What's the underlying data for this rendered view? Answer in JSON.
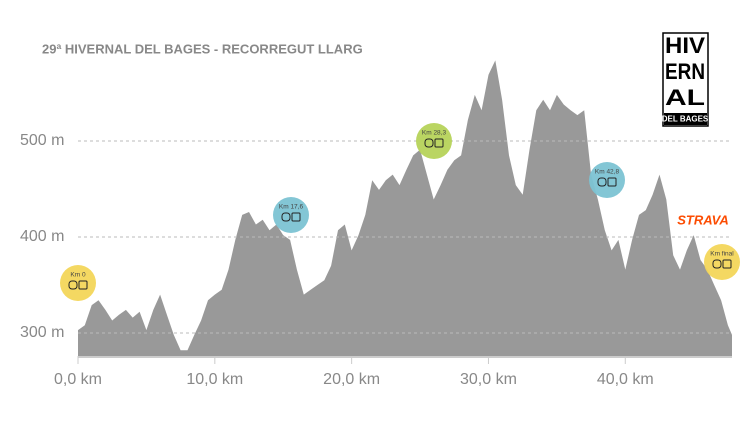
{
  "chart_data": {
    "type": "area",
    "title": "29ª HIVERNAL DEL BAGES - RECORREGUT LLARG",
    "color": "#999999",
    "x": [
      0,
      0.5,
      1,
      1.5,
      2,
      2.5,
      3,
      3.5,
      4,
      4.5,
      5,
      5.5,
      6,
      6.5,
      7,
      7.5,
      8,
      8.5,
      9,
      9.5,
      10,
      10.5,
      11,
      11.5,
      12,
      12.5,
      13,
      13.5,
      14,
      14.5,
      15,
      15.5,
      16,
      16.5,
      17,
      17.5,
      18,
      18.5,
      19,
      19.5,
      20,
      20.5,
      21,
      21.5,
      22,
      22.5,
      23,
      23.5,
      24,
      24.5,
      25,
      25.5,
      26,
      26.5,
      27,
      27.5,
      28,
      28.5,
      29,
      29.5,
      30,
      30.5,
      31,
      31.5,
      32,
      32.5,
      33,
      33.5,
      34,
      34.5,
      35,
      35.5,
      36,
      36.5,
      37,
      37.5,
      38,
      38.5,
      39,
      39.5,
      40,
      40.5,
      41,
      41.5,
      42,
      42.5,
      43,
      43.5,
      44,
      44.5,
      45,
      45.5,
      46,
      46.5,
      47,
      47.5,
      47.8
    ],
    "values": [
      303,
      308,
      329,
      334,
      324,
      313,
      319,
      324,
      316,
      322,
      303,
      324,
      340,
      319,
      298,
      282,
      282,
      298,
      313,
      334,
      340,
      345,
      366,
      397,
      423,
      426,
      413,
      418,
      407,
      413,
      402,
      397,
      366,
      340,
      345,
      350,
      355,
      370,
      407,
      413,
      386,
      402,
      423,
      459,
      449,
      459,
      465,
      454,
      470,
      485,
      491,
      465,
      439,
      454,
      470,
      480,
      485,
      522,
      548,
      532,
      569,
      584,
      543,
      485,
      454,
      444,
      491,
      532,
      543,
      532,
      548,
      538,
      532,
      527,
      532,
      465,
      439,
      407,
      386,
      397,
      366,
      397,
      423,
      428,
      444,
      465,
      439,
      381,
      366,
      386,
      402,
      376,
      366,
      350,
      334,
      308,
      298
    ],
    "xlim": [
      0,
      47.8
    ],
    "ylim": [
      276,
      600
    ],
    "xticks": [
      {
        "value": 0,
        "label": "0,0 km"
      },
      {
        "value": 10,
        "label": "10,0 km"
      },
      {
        "value": 20,
        "label": "20,0 km"
      },
      {
        "value": 30,
        "label": "30,0 km"
      },
      {
        "value": 40,
        "label": "40,0 km"
      }
    ],
    "yticks": [
      {
        "value": 300,
        "label": "300 m"
      },
      {
        "value": 400,
        "label": "400 m"
      },
      {
        "value": 500,
        "label": "500 m"
      }
    ],
    "grid": true,
    "annotations": [
      {
        "text": "Km 0",
        "color": "#f3d65a"
      },
      {
        "text": "Km 17,6",
        "color": "#7cc3d3"
      },
      {
        "text": "Km 28,3",
        "color": "#b6d35a"
      },
      {
        "text": "Km 42,8",
        "color": "#7cc3d3"
      },
      {
        "text": "Km final",
        "color": "#f3d65a"
      }
    ],
    "logo": {
      "lines": [
        "HIV",
        "ERN",
        "AL"
      ],
      "footer": "DEL BAGES"
    },
    "brand": "STRAVA"
  }
}
